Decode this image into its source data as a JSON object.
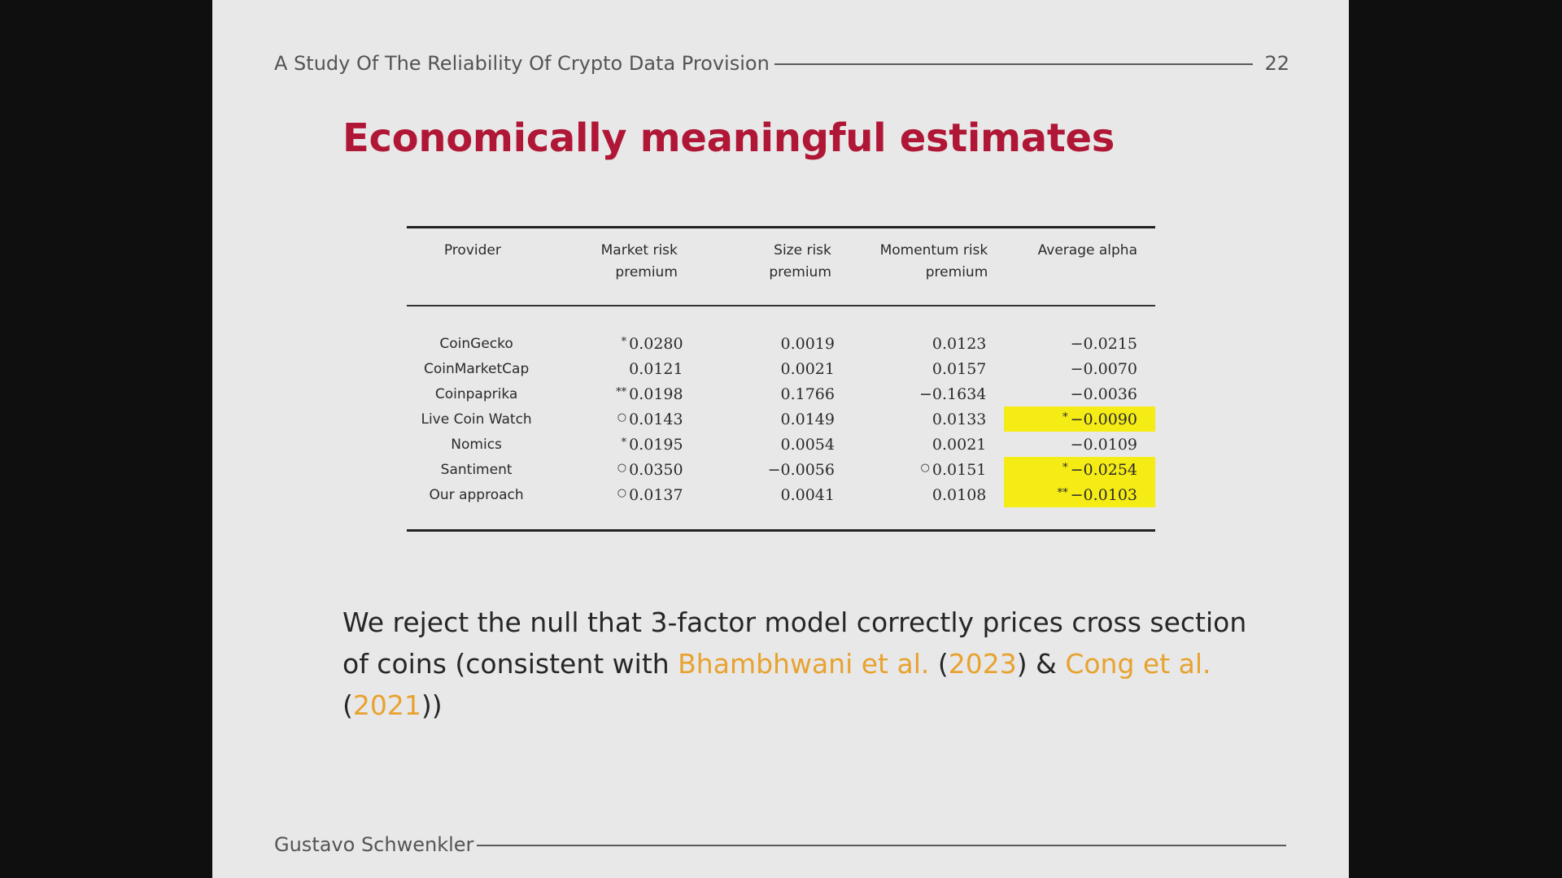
{
  "header": {
    "title": "A Study Of The Reliability Of Crypto Data Provision",
    "page_number": "22"
  },
  "slide_title": "Economically meaningful estimates",
  "table": {
    "headers": [
      [
        "Provider",
        ""
      ],
      [
        "Market risk",
        "premium"
      ],
      [
        "Size risk",
        "premium"
      ],
      [
        "Momentum risk",
        "premium"
      ],
      [
        "Average alpha",
        ""
      ]
    ],
    "rows": [
      {
        "provider": "CoinGecko",
        "cells": [
          {
            "sig": "*",
            "value": "0.0280"
          },
          {
            "sig": "",
            "value": "0.0019"
          },
          {
            "sig": "",
            "value": "0.0123"
          },
          {
            "sig": "",
            "value": "−0.0215"
          }
        ]
      },
      {
        "provider": "CoinMarketCap",
        "cells": [
          {
            "sig": "",
            "value": "0.0121"
          },
          {
            "sig": "",
            "value": "0.0021"
          },
          {
            "sig": "",
            "value": "0.0157"
          },
          {
            "sig": "",
            "value": "−0.0070"
          }
        ]
      },
      {
        "provider": "Coinpaprika",
        "cells": [
          {
            "sig": "**",
            "value": "0.0198"
          },
          {
            "sig": "",
            "value": "0.1766"
          },
          {
            "sig": "",
            "value": "−0.1634"
          },
          {
            "sig": "",
            "value": "−0.0036"
          }
        ]
      },
      {
        "provider": "Live Coin Watch",
        "cells": [
          {
            "sig": "○",
            "value": "0.0143"
          },
          {
            "sig": "",
            "value": "0.0149"
          },
          {
            "sig": "",
            "value": "0.0133"
          },
          {
            "sig": "*",
            "value": "−0.0090",
            "highlight": true
          }
        ]
      },
      {
        "provider": "Nomics",
        "cells": [
          {
            "sig": "*",
            "value": "0.0195"
          },
          {
            "sig": "",
            "value": "0.0054"
          },
          {
            "sig": "",
            "value": "0.0021"
          },
          {
            "sig": "",
            "value": "−0.0109"
          }
        ]
      },
      {
        "provider": "Santiment",
        "cells": [
          {
            "sig": "○",
            "value": "0.0350"
          },
          {
            "sig": "",
            "value": "−0.0056"
          },
          {
            "sig": "○",
            "value": "0.0151"
          },
          {
            "sig": "*",
            "value": "−0.0254",
            "highlight": true
          }
        ]
      },
      {
        "provider": "Our approach",
        "cells": [
          {
            "sig": "○",
            "value": "0.0137"
          },
          {
            "sig": "",
            "value": "0.0041"
          },
          {
            "sig": "",
            "value": "0.0108"
          },
          {
            "sig": "**",
            "value": "−0.0103",
            "highlight": true
          }
        ]
      }
    ]
  },
  "body": {
    "text1": "We reject the null that 3-factor model correctly prices cross section of coins (consistent with ",
    "cite1_authors": "Bhambhwani et al.",
    "cite1_year": "2023",
    "mid": ") & ",
    "cite2_authors": "Cong et al.",
    "cite2_year": "2021",
    "end": "))"
  },
  "footer": {
    "author": "Gustavo Schwenkler"
  },
  "colors": {
    "title": "#b01736",
    "highlight": "#f5ec16",
    "citation": "#e8a22e"
  }
}
